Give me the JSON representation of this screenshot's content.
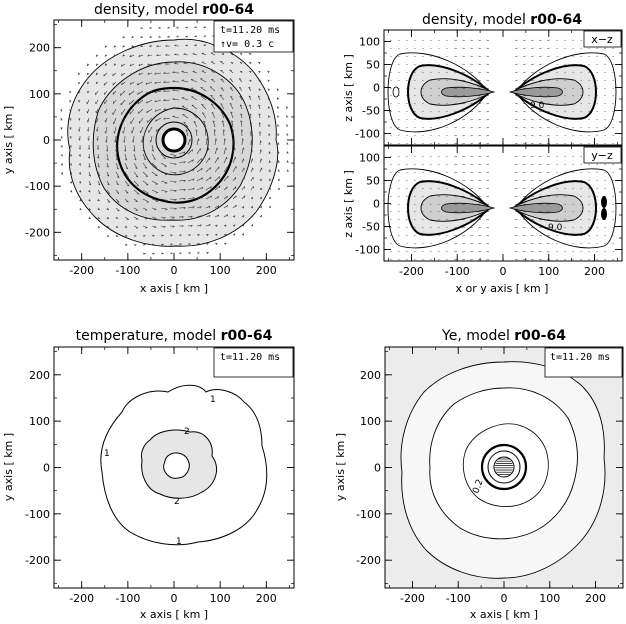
{
  "chart_data": [
    {
      "id": "p1",
      "type": "contour",
      "title_prefix": "density, model ",
      "title_model": "r00-64",
      "xlabel": "x axis [ km ]",
      "ylabel": "y axis [ km ]",
      "xlim": [
        -260,
        260
      ],
      "ylim": [
        -260,
        260
      ],
      "xticks": [
        -200,
        -100,
        0,
        100,
        200
      ],
      "yticks": [
        -200,
        -100,
        0,
        100,
        200
      ],
      "legend_lines": [
        "t=11.20 ms",
        "↑v= 0.3 c"
      ],
      "vector_field": true
    },
    {
      "id": "p2",
      "type": "contour",
      "title_prefix": "density, model ",
      "title_model": "r00-64",
      "ylabel": "z axis [ km ]",
      "xlim": [
        -260,
        260
      ],
      "ylim": [
        -125,
        125
      ],
      "xticks": [
        -200,
        -100,
        0,
        100,
        200
      ],
      "yticks": [
        -100,
        -50,
        0,
        50,
        100
      ],
      "panel_tag": "x−z",
      "contour_label": "9.0"
    },
    {
      "id": "p3",
      "type": "contour",
      "ylabel": "z axis [ km ]",
      "xlabel": "x or y axis [ km ]",
      "xlim": [
        -260,
        260
      ],
      "ylim": [
        -125,
        125
      ],
      "xticks": [
        -200,
        -100,
        0,
        100,
        200
      ],
      "yticks": [
        -100,
        -50,
        0,
        50,
        100
      ],
      "panel_tag": "y−z",
      "contour_label": "9.0"
    },
    {
      "id": "p4",
      "type": "contour",
      "title_prefix": "temperature, model ",
      "title_model": "r00-64",
      "xlabel": "x axis [ km ]",
      "ylabel": "y axis [ km ]",
      "xlim": [
        -260,
        260
      ],
      "ylim": [
        -260,
        260
      ],
      "xticks": [
        -200,
        -100,
        0,
        100,
        200
      ],
      "yticks": [
        -200,
        -100,
        0,
        100,
        200
      ],
      "legend_lines": [
        "t=11.20 ms"
      ],
      "contour_labels": [
        "1",
        "2"
      ]
    },
    {
      "id": "p5",
      "type": "contour",
      "title_prefix": "Ye, model ",
      "title_model": "r00-64",
      "xlabel": "x axis [ km ]",
      "ylabel": "y axis [ km ]",
      "xlim": [
        -260,
        260
      ],
      "ylim": [
        -260,
        260
      ],
      "xticks": [
        -200,
        -100,
        0,
        100,
        200
      ],
      "yticks": [
        -200,
        -100,
        0,
        100,
        200
      ],
      "legend_lines": [
        "t=11.20 ms"
      ],
      "contour_label": "0.2"
    }
  ]
}
